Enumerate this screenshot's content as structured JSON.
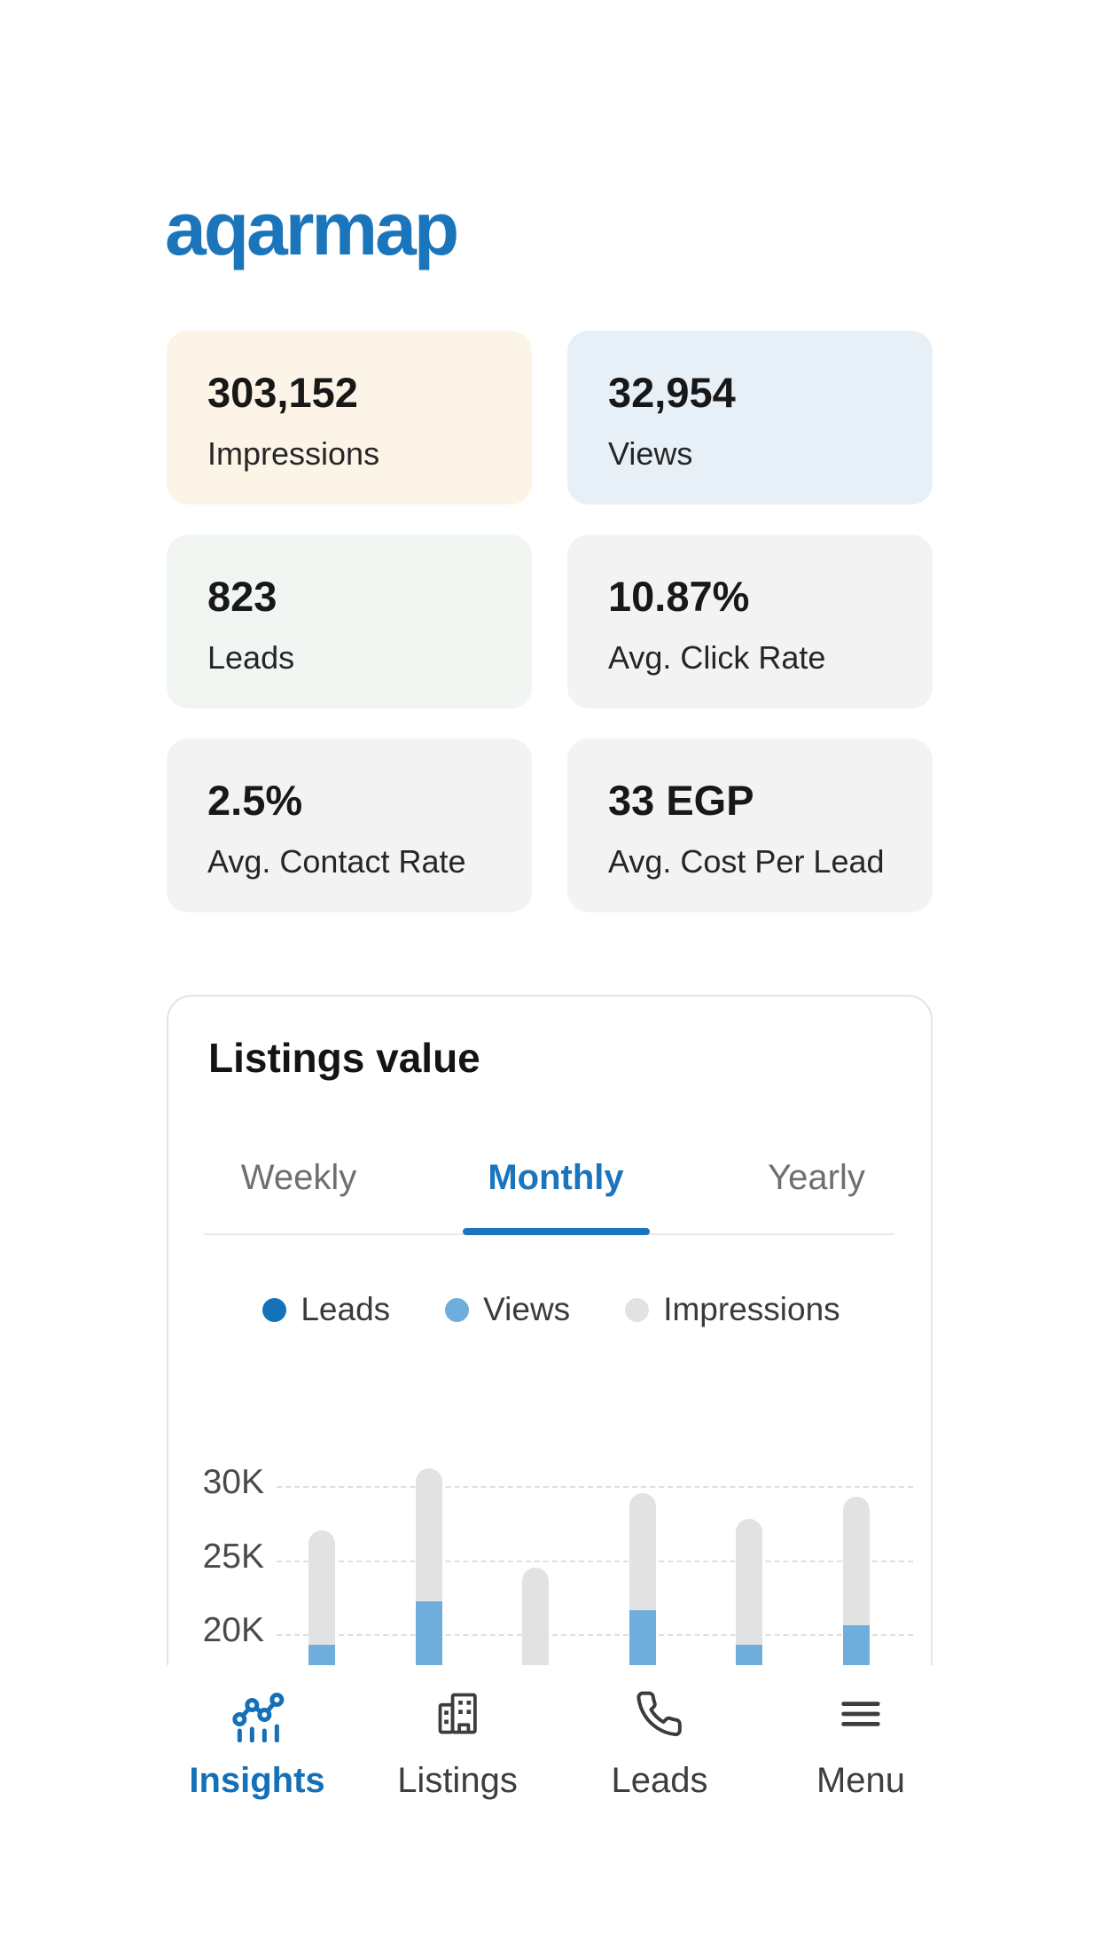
{
  "logo": {
    "text": "aqarmap",
    "color": "#1B75BB"
  },
  "stats": [
    {
      "value": "303,152",
      "label": "Impressions",
      "bg": "#FDF4E8"
    },
    {
      "value": "32,954",
      "label": "Views",
      "bg": "#E7F0F7"
    },
    {
      "value": "823",
      "label": "Leads",
      "bg": "#F1F6F2"
    },
    {
      "value": "10.87%",
      "label": "Avg. Click Rate",
      "bg": "#F3F3F3"
    },
    {
      "value": "2.5%",
      "label": "Avg. Contact Rate",
      "bg": "#F3F3F3"
    },
    {
      "value": "33 EGP",
      "label": "Avg. Cost Per Lead",
      "bg": "#F3F3F3"
    }
  ],
  "listings_value": {
    "title": "Listings value",
    "tabs": [
      {
        "label": "Weekly",
        "active": false
      },
      {
        "label": "Monthly",
        "active": true
      },
      {
        "label": "Yearly",
        "active": false
      }
    ],
    "legend": [
      {
        "label": "Leads",
        "color": "#1473B8"
      },
      {
        "label": "Views",
        "color": "#6FAEDC"
      },
      {
        "label": "Impressions",
        "color": "#E2E2E2"
      }
    ]
  },
  "chart_data": {
    "type": "bar",
    "title": "Listings value",
    "selected_period": "Monthly",
    "ylabel": "",
    "xlabel": "",
    "units": "thousands",
    "grid": "horizontal dashed",
    "legend_position": "top",
    "layout_note": "bottom of chart cropped by navigation bar at ~17.5K",
    "y_axis": {
      "ticks": [
        {
          "label": "30K",
          "value": 30
        },
        {
          "label": "25K",
          "value": 25
        },
        {
          "label": "20K",
          "value": 20
        }
      ],
      "visible_range_approx": [
        17.5,
        32
      ]
    },
    "series": [
      {
        "name": "Impressions",
        "color": "#E2E2E2",
        "values": [
          27.0,
          31.2,
          24.5,
          29.5,
          27.8,
          29.3
        ]
      },
      {
        "name": "Views",
        "color": "#6FAEDC",
        "values": [
          19.3,
          22.2,
          null,
          21.6,
          19.3,
          20.6
        ]
      },
      {
        "name": "Leads",
        "color": "#1473B8",
        "values": [
          null,
          null,
          null,
          null,
          null,
          null
        ]
      }
    ]
  },
  "nav": {
    "items": [
      {
        "label": "Insights",
        "icon": "insights-chart-icon",
        "active": true
      },
      {
        "label": "Listings",
        "icon": "buildings-icon",
        "active": false
      },
      {
        "label": "Leads",
        "icon": "phone-icon",
        "active": false
      },
      {
        "label": "Menu",
        "icon": "hamburger-menu-icon",
        "active": false
      }
    ]
  }
}
